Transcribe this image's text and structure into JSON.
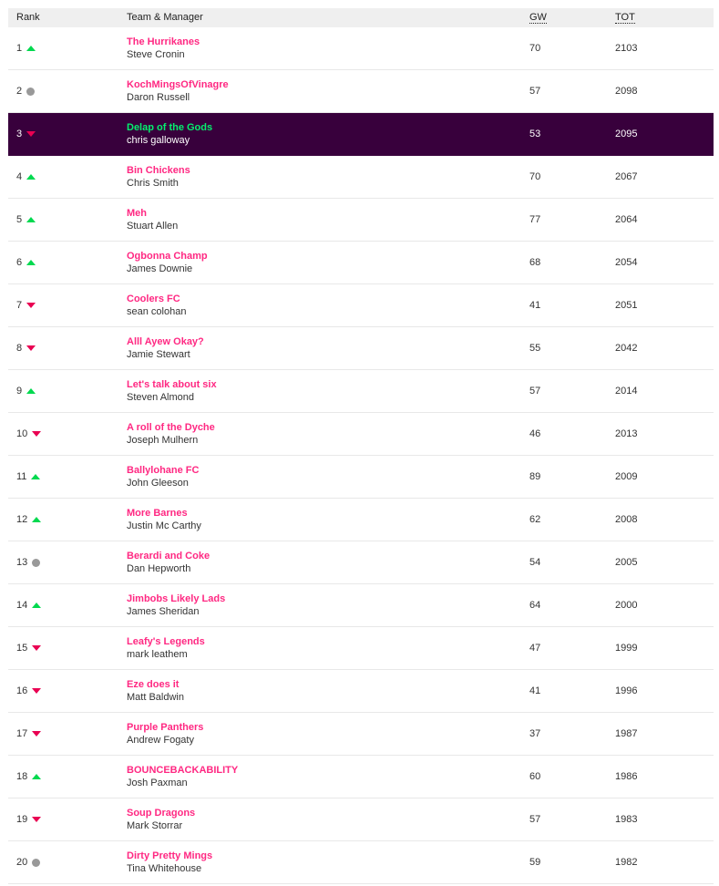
{
  "header": {
    "rank": "Rank",
    "team": "Team & Manager",
    "gw": "GW",
    "tot": "TOT"
  },
  "highlight_rank": 3,
  "rows": [
    {
      "rank": "1",
      "move": "up",
      "team": "The Hurrikanes",
      "manager": "Steve Cronin",
      "gw": "70",
      "tot": "2103"
    },
    {
      "rank": "2",
      "move": "same",
      "team": "KochMingsOfVinagre",
      "manager": "Daron Russell",
      "gw": "57",
      "tot": "2098"
    },
    {
      "rank": "3",
      "move": "down",
      "team": "Delap of the Gods",
      "manager": "chris galloway",
      "gw": "53",
      "tot": "2095"
    },
    {
      "rank": "4",
      "move": "up",
      "team": "Bin Chickens",
      "manager": "Chris Smith",
      "gw": "70",
      "tot": "2067"
    },
    {
      "rank": "5",
      "move": "up",
      "team": "Meh",
      "manager": "Stuart Allen",
      "gw": "77",
      "tot": "2064"
    },
    {
      "rank": "6",
      "move": "up",
      "team": "Ogbonna Champ",
      "manager": "James Downie",
      "gw": "68",
      "tot": "2054"
    },
    {
      "rank": "7",
      "move": "down",
      "team": "Coolers FC",
      "manager": "sean colohan",
      "gw": "41",
      "tot": "2051"
    },
    {
      "rank": "8",
      "move": "down",
      "team": "Alll Ayew Okay?",
      "manager": "Jamie Stewart",
      "gw": "55",
      "tot": "2042"
    },
    {
      "rank": "9",
      "move": "up",
      "team": "Let's talk about six",
      "manager": "Steven Almond",
      "gw": "57",
      "tot": "2014"
    },
    {
      "rank": "10",
      "move": "down",
      "team": "A roll of the Dyche",
      "manager": "Joseph Mulhern",
      "gw": "46",
      "tot": "2013"
    },
    {
      "rank": "11",
      "move": "up",
      "team": "Ballylohane FC",
      "manager": "John Gleeson",
      "gw": "89",
      "tot": "2009"
    },
    {
      "rank": "12",
      "move": "up",
      "team": "More Barnes",
      "manager": "Justin Mc Carthy",
      "gw": "62",
      "tot": "2008"
    },
    {
      "rank": "13",
      "move": "same",
      "team": "Berardi and Coke",
      "manager": "Dan Hepworth",
      "gw": "54",
      "tot": "2005"
    },
    {
      "rank": "14",
      "move": "up",
      "team": "Jimbobs Likely Lads",
      "manager": "James Sheridan",
      "gw": "64",
      "tot": "2000"
    },
    {
      "rank": "15",
      "move": "down",
      "team": "Leafy's Legends",
      "manager": "mark leathem",
      "gw": "47",
      "tot": "1999"
    },
    {
      "rank": "16",
      "move": "down",
      "team": "Eze does it",
      "manager": "Matt Baldwin",
      "gw": "41",
      "tot": "1996"
    },
    {
      "rank": "17",
      "move": "down",
      "team": "Purple Panthers",
      "manager": "Andrew Fogaty",
      "gw": "37",
      "tot": "1987"
    },
    {
      "rank": "18",
      "move": "up",
      "team": "BOUNCEBACKABILITY",
      "manager": "Josh Paxman",
      "gw": "60",
      "tot": "1986"
    },
    {
      "rank": "19",
      "move": "down",
      "team": "Soup Dragons",
      "manager": "Mark Storrar",
      "gw": "57",
      "tot": "1983"
    },
    {
      "rank": "20",
      "move": "same",
      "team": "Dirty Pretty Mings",
      "manager": "Tina Whitehouse",
      "gw": "59",
      "tot": "1982"
    }
  ]
}
